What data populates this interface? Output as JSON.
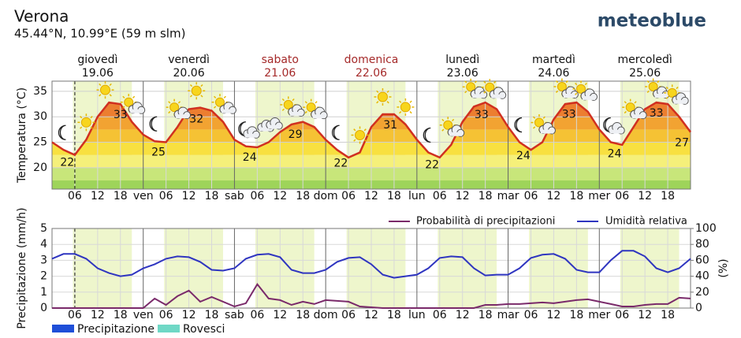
{
  "header": {
    "title": "Verona",
    "subtitle": "45.44°N, 10.99°E (59 m slm)",
    "logo": "meteoblue"
  },
  "chart_data": [
    {
      "type": "meteogram-temperature",
      "y_label": "Temperatura (°C)",
      "xlim": [
        0,
        168
      ],
      "ylim": [
        15.8,
        37
      ],
      "yticks": [
        20,
        25,
        30,
        35
      ],
      "xticks": [
        {
          "value": 6,
          "label": "06"
        },
        {
          "value": 12,
          "label": "12"
        },
        {
          "value": 18,
          "label": "18"
        },
        {
          "value": 24,
          "label": "ven"
        },
        {
          "value": 30,
          "label": "06"
        },
        {
          "value": 36,
          "label": "12"
        },
        {
          "value": 42,
          "label": "18"
        },
        {
          "value": 48,
          "label": "sab"
        },
        {
          "value": 54,
          "label": "06"
        },
        {
          "value": 60,
          "label": "12"
        },
        {
          "value": 66,
          "label": "18"
        },
        {
          "value": 72,
          "label": "dom"
        },
        {
          "value": 78,
          "label": "06"
        },
        {
          "value": 84,
          "label": "12"
        },
        {
          "value": 90,
          "label": "18"
        },
        {
          "value": 96,
          "label": "lun"
        },
        {
          "value": 102,
          "label": "06"
        },
        {
          "value": 108,
          "label": "12"
        },
        {
          "value": 114,
          "label": "18"
        },
        {
          "value": 120,
          "label": "mar"
        },
        {
          "value": 126,
          "label": "06"
        },
        {
          "value": 132,
          "label": "12"
        },
        {
          "value": 138,
          "label": "18"
        },
        {
          "value": 144,
          "label": "mer"
        },
        {
          "value": 150,
          "label": "06"
        },
        {
          "value": 156,
          "label": "12"
        },
        {
          "value": 162,
          "label": "18"
        }
      ],
      "days": [
        {
          "name": "giovedì",
          "date": "19.06",
          "color": "#111111"
        },
        {
          "name": "venerdì",
          "date": "20.06",
          "color": "#111111"
        },
        {
          "name": "sabato",
          "date": "21.06",
          "color": "#a52a2a"
        },
        {
          "name": "domenica",
          "date": "22.06",
          "color": "#a52a2a"
        },
        {
          "name": "lunedì",
          "date": "23.06",
          "color": "#111111"
        },
        {
          "name": "martedì",
          "date": "24.06",
          "color": "#111111"
        },
        {
          "name": "mercoledì",
          "date": "25.06",
          "color": "#111111"
        }
      ],
      "daylight": [
        5.5,
        21
      ],
      "daylight_color": "#eef6cc",
      "now": 6,
      "bands": [
        {
          "from": 15,
          "color": "#9ed45a"
        },
        {
          "from": 17.5,
          "color": "#c8e67a"
        },
        {
          "from": 20,
          "color": "#f5f07a"
        },
        {
          "from": 22.5,
          "color": "#f8e040"
        },
        {
          "from": 25,
          "color": "#f5c234"
        },
        {
          "from": 27.5,
          "color": "#f2a332"
        },
        {
          "from": 30,
          "color": "#ec7e30"
        },
        {
          "from": 32.5,
          "color": "#e4572a"
        },
        {
          "from": 35,
          "color": "#d83a24"
        }
      ],
      "x": [
        0,
        3,
        6,
        9,
        12,
        15,
        18,
        21,
        24,
        27,
        30,
        33,
        36,
        39,
        42,
        45,
        48,
        51,
        54,
        57,
        60,
        63,
        66,
        69,
        72,
        75,
        78,
        81,
        84,
        87,
        90,
        93,
        96,
        99,
        102,
        105,
        108,
        111,
        114,
        117,
        120,
        123,
        126,
        129,
        132,
        135,
        138,
        141,
        144,
        147,
        150,
        153,
        156,
        159,
        162,
        165,
        168
      ],
      "series": [
        {
          "name": "Temperatura",
          "color": "#d03020",
          "values": [
            25,
            23.5,
            22.5,
            25.5,
            30,
            32.8,
            32.5,
            29,
            26.5,
            25.2,
            25,
            28,
            31.5,
            31.8,
            31.2,
            29,
            25.5,
            24.2,
            24,
            25,
            27,
            28.5,
            29,
            28,
            25.5,
            23.5,
            22,
            23,
            28,
            30.5,
            30.5,
            28.5,
            25.5,
            23,
            22,
            24.5,
            29,
            32,
            32.8,
            31.5,
            28,
            25,
            23.5,
            25,
            29.5,
            32.5,
            32.8,
            31,
            27.5,
            25,
            24.5,
            28,
            31.5,
            32.8,
            32.5,
            30,
            27
          ]
        }
      ],
      "extremes": [
        {
          "x": 4,
          "value": 22
        },
        {
          "x": 18,
          "value": 33
        },
        {
          "x": 28,
          "value": 25
        },
        {
          "x": 38,
          "value": 32
        },
        {
          "x": 52,
          "value": 24
        },
        {
          "x": 64,
          "value": 29
        },
        {
          "x": 76,
          "value": 22
        },
        {
          "x": 89,
          "value": 31
        },
        {
          "x": 100,
          "value": 22
        },
        {
          "x": 113,
          "value": 33
        },
        {
          "x": 124,
          "value": 24
        },
        {
          "x": 136,
          "value": 33
        },
        {
          "x": 148,
          "value": 24
        },
        {
          "x": 159,
          "value": 33
        },
        {
          "x": 168,
          "value": 27
        }
      ],
      "weather_icons": [
        {
          "x": 3,
          "type": "moon"
        },
        {
          "x": 9,
          "type": "sun"
        },
        {
          "x": 14,
          "type": "sun"
        },
        {
          "x": 21,
          "type": "suncloud"
        },
        {
          "x": 27,
          "type": "moon"
        },
        {
          "x": 33,
          "type": "suncloud"
        },
        {
          "x": 38,
          "type": "sun"
        },
        {
          "x": 45,
          "type": "suncloud"
        },
        {
          "x": 51,
          "type": "mooncloud"
        },
        {
          "x": 57,
          "type": "cloud"
        },
        {
          "x": 63,
          "type": "suncloud"
        },
        {
          "x": 69,
          "type": "suncloud"
        },
        {
          "x": 75,
          "type": "moon"
        },
        {
          "x": 81,
          "type": "sun"
        },
        {
          "x": 87,
          "type": "sun"
        },
        {
          "x": 93,
          "type": "sun"
        },
        {
          "x": 99,
          "type": "moon"
        },
        {
          "x": 105,
          "type": "suncloud"
        },
        {
          "x": 111,
          "type": "suncloud"
        },
        {
          "x": 116,
          "type": "suncloud"
        },
        {
          "x": 123,
          "type": "moon"
        },
        {
          "x": 129,
          "type": "suncloud"
        },
        {
          "x": 135,
          "type": "suncloud"
        },
        {
          "x": 140,
          "type": "suncloud"
        },
        {
          "x": 147,
          "type": "mooncloud"
        },
        {
          "x": 153,
          "type": "suncloud"
        },
        {
          "x": 159,
          "type": "suncloud"
        },
        {
          "x": 164,
          "type": "suncloud"
        }
      ]
    },
    {
      "type": "meteogram-precipitation",
      "y_label": "Precipitazione (mm/h)",
      "y2_label": "(%)",
      "xlim": [
        0,
        168
      ],
      "ylim": [
        0,
        5
      ],
      "yticks": [
        0,
        1,
        2,
        3,
        4,
        5
      ],
      "y2lim": [
        0,
        100
      ],
      "y2ticks": [
        0,
        20,
        40,
        60,
        80,
        100
      ],
      "xticks": [
        {
          "value": 6,
          "label": "06"
        },
        {
          "value": 12,
          "label": "12"
        },
        {
          "value": 18,
          "label": "18"
        },
        {
          "value": 24,
          "label": "ven"
        },
        {
          "value": 30,
          "label": "06"
        },
        {
          "value": 36,
          "label": "12"
        },
        {
          "value": 42,
          "label": "18"
        },
        {
          "value": 48,
          "label": "sab"
        },
        {
          "value": 54,
          "label": "06"
        },
        {
          "value": 60,
          "label": "12"
        },
        {
          "value": 66,
          "label": "18"
        },
        {
          "value": 72,
          "label": "dom"
        },
        {
          "value": 78,
          "label": "06"
        },
        {
          "value": 84,
          "label": "12"
        },
        {
          "value": 90,
          "label": "18"
        },
        {
          "value": 96,
          "label": "lun"
        },
        {
          "value": 102,
          "label": "06"
        },
        {
          "value": 108,
          "label": "12"
        },
        {
          "value": 114,
          "label": "18"
        },
        {
          "value": 120,
          "label": "mar"
        },
        {
          "value": 126,
          "label": "06"
        },
        {
          "value": 132,
          "label": "12"
        },
        {
          "value": 138,
          "label": "18"
        },
        {
          "value": 144,
          "label": "mer"
        },
        {
          "value": 150,
          "label": "06"
        },
        {
          "value": 156,
          "label": "12"
        },
        {
          "value": 162,
          "label": "18"
        }
      ],
      "daylight": [
        5.5,
        21
      ],
      "daylight_color": "#eef6cc",
      "now": 6,
      "x": [
        0,
        3,
        6,
        9,
        12,
        15,
        18,
        21,
        24,
        27,
        30,
        33,
        36,
        39,
        42,
        45,
        48,
        51,
        54,
        57,
        60,
        63,
        66,
        69,
        72,
        75,
        78,
        81,
        84,
        87,
        90,
        93,
        96,
        99,
        102,
        105,
        108,
        111,
        114,
        117,
        120,
        123,
        126,
        129,
        132,
        135,
        138,
        141,
        144,
        147,
        150,
        153,
        156,
        159,
        162,
        165,
        168
      ],
      "series": [
        {
          "name": "Probabilità di precipitazioni",
          "color": "#7a2a6a",
          "kind": "line",
          "axis": "y2",
          "values": [
            0,
            0,
            0,
            0,
            0,
            0,
            0,
            0,
            0,
            12,
            4,
            15,
            22,
            8,
            14,
            8,
            2,
            6,
            30,
            12,
            10,
            4,
            8,
            5,
            10,
            9,
            8,
            2,
            1,
            0,
            0,
            0,
            0,
            0,
            0,
            0,
            0,
            0,
            4,
            4,
            5,
            5,
            6,
            7,
            6,
            8,
            10,
            11,
            8,
            5,
            2,
            2,
            4,
            5,
            5,
            13,
            12
          ]
        },
        {
          "name": "Umidità relativa",
          "color": "#2f35c0",
          "kind": "line",
          "axis": "y2",
          "values": [
            62,
            68,
            68,
            62,
            50,
            44,
            40,
            42,
            50,
            55,
            62,
            65,
            64,
            58,
            48,
            47,
            50,
            62,
            67,
            68,
            64,
            48,
            44,
            44,
            48,
            58,
            63,
            64,
            55,
            42,
            38,
            40,
            42,
            50,
            63,
            65,
            64,
            50,
            41,
            42,
            42,
            50,
            63,
            67,
            68,
            62,
            48,
            45,
            45,
            60,
            72,
            72,
            65,
            50,
            45,
            50,
            62
          ]
        },
        {
          "name": "Precipitazione",
          "color": "#1f4fd8",
          "kind": "bar",
          "values": [
            0,
            0,
            0,
            0,
            0,
            0,
            0,
            0,
            0,
            0,
            0,
            0,
            0,
            0,
            0,
            0,
            0,
            0,
            0,
            0,
            0,
            0,
            0,
            0,
            0,
            0,
            0,
            0,
            0,
            0,
            0,
            0,
            0,
            0,
            0,
            0,
            0,
            0,
            0,
            0,
            0,
            0,
            0,
            0,
            0,
            0,
            0,
            0,
            0,
            0,
            0,
            0,
            0,
            0,
            0,
            0,
            0
          ]
        },
        {
          "name": "Rovesci",
          "color": "#6fd8c6",
          "kind": "bar",
          "values": [
            0,
            0,
            0,
            0,
            0,
            0,
            0,
            0,
            0,
            0,
            0,
            0,
            0,
            0,
            0,
            0,
            0,
            0,
            0,
            0,
            0,
            0,
            0,
            0,
            0,
            0,
            0,
            0,
            0,
            0,
            0,
            0,
            0,
            0,
            0,
            0,
            0,
            0,
            0,
            0,
            0,
            0,
            0,
            0,
            0,
            0,
            0,
            0,
            0,
            0,
            0,
            0,
            0,
            0,
            0,
            0,
            0
          ]
        }
      ]
    }
  ]
}
